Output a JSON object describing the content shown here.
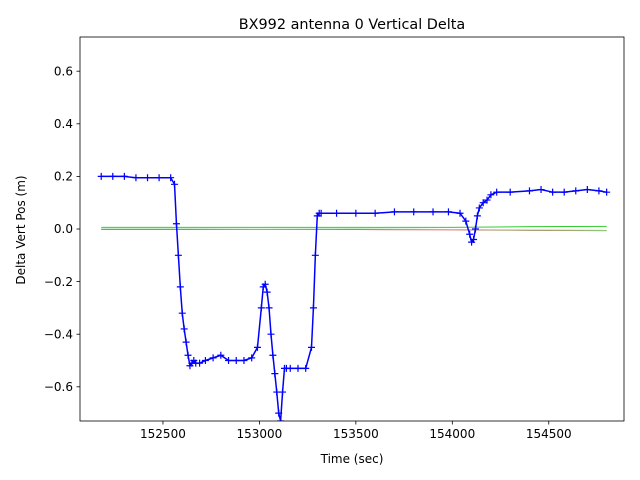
{
  "chart_data": {
    "type": "line",
    "title": "BX992 antenna 0 Vertical Delta",
    "xlabel": "Time (sec)",
    "ylabel": "Delta Vert Pos (m)",
    "xlim": [
      152070,
      154890
    ],
    "ylim": [
      -0.73,
      0.73
    ],
    "xticks": [
      152500,
      153000,
      153500,
      154000,
      154500
    ],
    "yticks": [
      -0.6,
      -0.4,
      -0.2,
      0.0,
      0.2,
      0.4,
      0.6
    ],
    "xtick_labels": [
      "152500",
      "153000",
      "153500",
      "154000",
      "154500"
    ],
    "ytick_labels": [
      "−0.6",
      "−0.4",
      "−0.2",
      "0.0",
      "0.2",
      "0.4",
      "0.6"
    ],
    "grid": false,
    "series": [
      {
        "color": "#0000ff",
        "marker": "+",
        "x": [
          152180,
          152240,
          152300,
          152360,
          152420,
          152480,
          152540,
          152560,
          152570,
          152580,
          152590,
          152600,
          152610,
          152620,
          152630,
          152640,
          152650,
          152660,
          152670,
          152690,
          152720,
          152760,
          152800,
          152840,
          152880,
          152920,
          152960,
          152990,
          153010,
          153020,
          153030,
          153040,
          153050,
          153060,
          153070,
          153080,
          153090,
          153100,
          153110,
          153120,
          153130,
          153140,
          153160,
          153200,
          153240,
          153270,
          153280,
          153290,
          153300,
          153310,
          153320,
          153400,
          153500,
          153600,
          153700,
          153800,
          153900,
          153980,
          154040,
          154070,
          154090,
          154100,
          154110,
          154120,
          154130,
          154140,
          154160,
          154180,
          154200,
          154230,
          154300,
          154400,
          154460,
          154520,
          154580,
          154640,
          154700,
          154760,
          154800
        ],
        "y": [
          0.2,
          0.2,
          0.2,
          0.195,
          0.195,
          0.195,
          0.195,
          0.17,
          0.02,
          -0.1,
          -0.22,
          -0.32,
          -0.38,
          -0.43,
          -0.48,
          -0.52,
          -0.51,
          -0.5,
          -0.51,
          -0.51,
          -0.5,
          -0.49,
          -0.48,
          -0.5,
          -0.5,
          -0.5,
          -0.49,
          -0.45,
          -0.3,
          -0.22,
          -0.21,
          -0.24,
          -0.3,
          -0.4,
          -0.48,
          -0.55,
          -0.62,
          -0.7,
          -0.73,
          -0.62,
          -0.53,
          -0.53,
          -0.53,
          -0.53,
          -0.53,
          -0.45,
          -0.3,
          -0.1,
          0.05,
          0.06,
          0.06,
          0.06,
          0.06,
          0.06,
          0.065,
          0.065,
          0.065,
          0.065,
          0.06,
          0.03,
          -0.02,
          -0.05,
          -0.04,
          0.0,
          0.05,
          0.08,
          0.1,
          0.11,
          0.13,
          0.14,
          0.14,
          0.145,
          0.15,
          0.14,
          0.14,
          0.145,
          0.15,
          0.145,
          0.14
        ]
      },
      {
        "color": "#33cc33",
        "x": [
          152180,
          152600,
          153000,
          153500,
          154000,
          154400,
          154800
        ],
        "y": [
          0.006,
          0.006,
          0.006,
          0.006,
          0.006,
          0.009,
          0.01
        ]
      },
      {
        "color": "#cc3333",
        "x": [
          152180,
          152600,
          153000,
          153500,
          154000,
          154400,
          154800
        ],
        "y": [
          -0.002,
          -0.002,
          -0.002,
          -0.002,
          -0.003,
          -0.005,
          -0.006
        ]
      },
      {
        "color": "#88dd88",
        "x": [
          152180,
          152600,
          153000,
          153500,
          154000,
          154400,
          154800
        ],
        "y": [
          0.0,
          0.0,
          -0.001,
          0.0,
          -0.002,
          -0.004,
          -0.005
        ]
      }
    ]
  }
}
